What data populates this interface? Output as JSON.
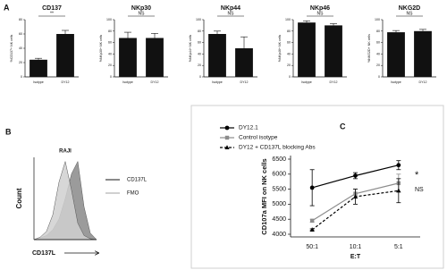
{
  "chart_data": [
    {
      "type": "bar",
      "panel_label": "A",
      "title": "CD137",
      "y_label": "%CD137+ NK cells",
      "categories": [
        "Isotype",
        "DY12"
      ],
      "values": [
        24,
        60
      ],
      "errors": [
        2,
        5
      ],
      "color": "#111111",
      "ylim": [
        0,
        80
      ],
      "yticks": [
        0,
        20,
        40,
        60,
        80
      ],
      "annotation": "**"
    },
    {
      "type": "bar",
      "title": "NKp30",
      "y_label": "%NKp30+ NK cells",
      "categories": [
        "Isotype",
        "DY12"
      ],
      "values": [
        68,
        68
      ],
      "errors": [
        10,
        8
      ],
      "color": "#111111",
      "ylim": [
        0,
        100
      ],
      "yticks": [
        0,
        20,
        40,
        60,
        80,
        100
      ],
      "annotation": "NS"
    },
    {
      "type": "bar",
      "title": "NKp44",
      "y_label": "%NKp44+ NK cells",
      "categories": [
        "Isotype",
        "DY12"
      ],
      "values": [
        75,
        50
      ],
      "errors": [
        5,
        20
      ],
      "color": "#111111",
      "ylim": [
        0,
        100
      ],
      "yticks": [
        0,
        20,
        40,
        60,
        80,
        100
      ],
      "annotation": "NS"
    },
    {
      "type": "bar",
      "title": "NKp46",
      "y_label": "%NKp46+ NK cells",
      "categories": [
        "Isotype",
        "DY12"
      ],
      "values": [
        95,
        90
      ],
      "errors": [
        3,
        3
      ],
      "color": "#111111",
      "ylim": [
        0,
        100
      ],
      "yticks": [
        0,
        20,
        40,
        60,
        80,
        100
      ],
      "annotation": "NS"
    },
    {
      "type": "bar",
      "title": "NKG2D",
      "y_label": "%NKG2D+ NK cells",
      "categories": [
        "Isotype",
        "DY12"
      ],
      "values": [
        78,
        80
      ],
      "errors": [
        3,
        3
      ],
      "color": "#111111",
      "ylim": [
        0,
        100
      ],
      "yticks": [
        0,
        20,
        40,
        60,
        80,
        100
      ],
      "annotation": "NS"
    },
    {
      "type": "area",
      "panel_label": "B",
      "title": "RAJI",
      "x_label": "CD137L",
      "y_label": "Count",
      "x": [
        0,
        10,
        20,
        30,
        40,
        50,
        60,
        70,
        80,
        90,
        100
      ],
      "xlim": [
        0,
        100
      ],
      "ylim": [
        0,
        100
      ],
      "series": [
        {
          "name": "CD137L",
          "color": "#8a8a8a",
          "values": [
            0,
            2,
            5,
            12,
            25,
            50,
            80,
            95,
            40,
            8,
            0
          ]
        },
        {
          "name": "FMO",
          "color": "#d0d0d0",
          "values": [
            0,
            3,
            10,
            30,
            70,
            95,
            60,
            20,
            5,
            1,
            0
          ]
        }
      ]
    },
    {
      "type": "line",
      "panel_label": "C",
      "x_label": "E:T",
      "y_label": "CD107a MFI on NK cells",
      "categories": [
        "50:1",
        "10:1",
        "5:1"
      ],
      "ylim": [
        4000,
        6500
      ],
      "yticks": [
        4000,
        4500,
        5000,
        5500,
        6000,
        6500
      ],
      "series": [
        {
          "name": "DY12.1",
          "color": "#000000",
          "marker": "circle",
          "line_style": "solid",
          "values": [
            5550,
            5950,
            6300
          ],
          "errors": [
            600,
            100,
            150
          ]
        },
        {
          "name": "Control isotype",
          "color": "#8c8c8c",
          "marker": "square",
          "line_style": "solid",
          "values": [
            4450,
            5350,
            5700
          ],
          "errors": [
            50,
            150,
            300
          ]
        },
        {
          "name": "DY12 + CD137L blocking Abs",
          "color": "#000000",
          "marker": "triangle",
          "line_style": "dashed",
          "values": [
            4150,
            5250,
            5450
          ],
          "errors": [
            30,
            250,
            400
          ]
        }
      ],
      "annotations": [
        "*",
        "NS"
      ]
    }
  ]
}
